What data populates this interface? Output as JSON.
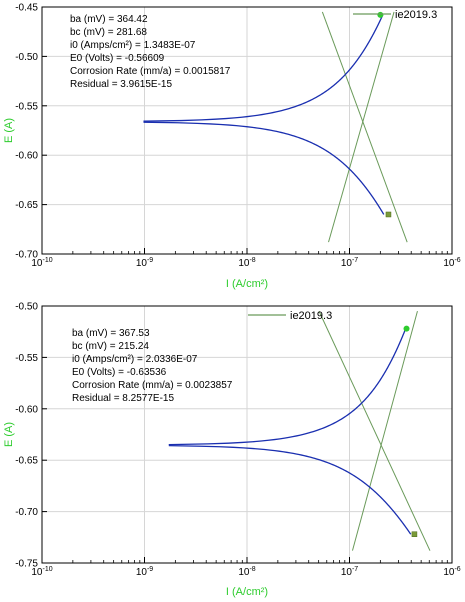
{
  "colors": {
    "curve": "#1a2fb0",
    "tafel": "#6a9a5a",
    "marker": "#2ecc2e",
    "axis_label": "#2ecc2e",
    "grid": "#d6d6d6"
  },
  "chart_data": [
    {
      "type": "line",
      "xscale": "log",
      "xlabel": "I (A/cm²)",
      "ylabel": "E (A)",
      "xlim": [
        1e-10,
        1e-06
      ],
      "ylim": [
        -0.7,
        -0.45
      ],
      "yticks": [
        -0.45,
        -0.5,
        -0.55,
        -0.6,
        -0.65,
        -0.7
      ],
      "ytick_labels": [
        "-0.45",
        "-0.50",
        "-0.55",
        "-0.60",
        "-0.65",
        "-0.70"
      ],
      "xtick_bases": [
        "10",
        "10",
        "10",
        "10",
        "10"
      ],
      "xtick_exps": [
        "-10",
        "-9",
        "-8",
        "-7",
        "-6"
      ],
      "grid": true,
      "legend": {
        "label": "ie2019.3",
        "position": "top-right"
      },
      "annotations": [
        "ba (mV) = 364.42",
        "bc (mV) = 281.68",
        "i0 (Amps/cm²) = 1.3483E-07",
        "E0 (Volts) = -0.56609",
        "Corrosion Rate (mm/a) = 0.0015817",
        "Residual = 3.9615E-15"
      ],
      "params": {
        "ba": 364.42,
        "bc": 281.68,
        "i0": 1.3483e-07,
        "E0": -0.56609
      },
      "scan_range": {
        "E_min": -0.66,
        "E_max": -0.458,
        "I_min": 3.3e-10
      },
      "endpoints": [
        {
          "x": 2e-07,
          "y": -0.458
        },
        {
          "x": 2.4e-07,
          "y": -0.66
        }
      ]
    },
    {
      "type": "line",
      "xscale": "log",
      "xlabel": "I (A/cm²)",
      "ylabel": "E (A)",
      "xlim": [
        1e-10,
        1e-06
      ],
      "ylim": [
        -0.75,
        -0.5
      ],
      "yticks": [
        -0.5,
        -0.55,
        -0.6,
        -0.65,
        -0.7,
        -0.75
      ],
      "ytick_labels": [
        "-0.50",
        "-0.55",
        "-0.60",
        "-0.65",
        "-0.70",
        "-0.75"
      ],
      "xtick_bases": [
        "10",
        "10",
        "10",
        "10",
        "10"
      ],
      "xtick_exps": [
        "-10",
        "-9",
        "-8",
        "-7",
        "-6"
      ],
      "grid": true,
      "legend": {
        "label": "ie2019.3",
        "position": "top-center"
      },
      "annotations": [
        "ba (mV) = 367.53",
        "bc (mV) = 215.24",
        "i0 (Amps/cm²) = 2.0336E-07",
        "E0 (Volts) = -0.63536",
        "Corrosion Rate (mm/a) = 0.0023857",
        "Residual = 8.2577E-15"
      ],
      "params": {
        "ba": 367.53,
        "bc": 215.24,
        "i0": 2.0336e-07,
        "E0": -0.63536
      },
      "scan_range": {
        "E_min": -0.722,
        "E_max": -0.522,
        "I_min": 7.5e-10
      },
      "endpoints": [
        {
          "x": 3.6e-07,
          "y": -0.522
        },
        {
          "x": 4.3e-07,
          "y": -0.722
        }
      ]
    }
  ]
}
